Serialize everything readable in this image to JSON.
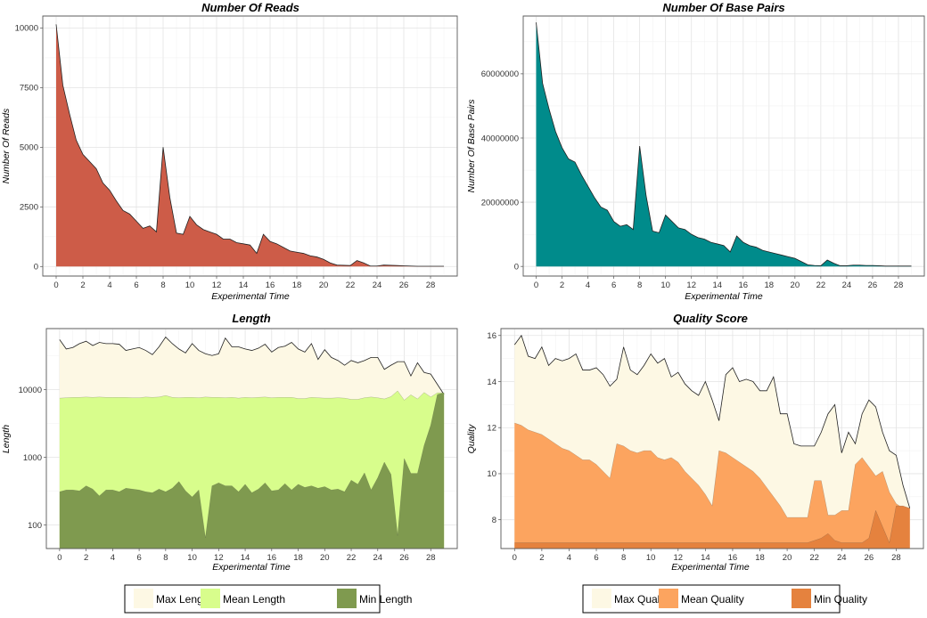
{
  "chart_data": [
    {
      "id": "reads",
      "type": "area",
      "title": "Number Of Reads",
      "xlabel": "Experimental Time",
      "ylabel": "Number Of Reads",
      "xlim": [
        -1,
        30
      ],
      "ylim": [
        -400,
        10500
      ],
      "xticks": [
        0,
        2,
        4,
        6,
        8,
        10,
        12,
        14,
        16,
        18,
        20,
        22,
        24,
        26,
        28
      ],
      "yticks": [
        0,
        2500,
        5000,
        7500,
        10000
      ],
      "grid": true,
      "fill": "#cd5c48",
      "x": [
        0,
        0.5,
        1,
        1.5,
        2,
        2.5,
        3,
        3.5,
        4,
        4.5,
        5,
        5.5,
        6,
        6.5,
        7,
        7.5,
        8,
        8.5,
        9,
        9.5,
        10,
        10.5,
        11,
        11.5,
        12,
        12.5,
        13,
        13.5,
        14,
        14.5,
        15,
        15.5,
        16,
        16.5,
        17,
        17.5,
        18,
        18.5,
        19,
        19.5,
        20,
        20.5,
        21,
        21.5,
        22,
        22.5,
        23,
        23.5,
        24,
        24.5,
        25,
        25.5,
        26,
        26.5,
        27,
        27.5,
        28,
        28.5,
        29
      ],
      "values": [
        10150,
        7600,
        6400,
        5300,
        4700,
        4400,
        4100,
        3500,
        3200,
        2750,
        2350,
        2200,
        1900,
        1600,
        1700,
        1450,
        5000,
        2900,
        1400,
        1350,
        2100,
        1750,
        1550,
        1450,
        1350,
        1150,
        1150,
        1000,
        950,
        900,
        550,
        1350,
        1050,
        950,
        800,
        650,
        600,
        550,
        450,
        400,
        300,
        150,
        60,
        50,
        40,
        250,
        150,
        20,
        20,
        60,
        50,
        40,
        30,
        20,
        10,
        10,
        10,
        10,
        10
      ]
    },
    {
      "id": "bases",
      "type": "area",
      "title": "Number Of Base Pairs",
      "xlabel": "Experimental Time",
      "ylabel": "Number Of Base Pairs",
      "xlim": [
        -1,
        30
      ],
      "ylim": [
        -3000000,
        78000000
      ],
      "xticks": [
        0,
        2,
        4,
        6,
        8,
        10,
        12,
        14,
        16,
        18,
        20,
        22,
        24,
        26,
        28
      ],
      "yticks": [
        0,
        20000000,
        40000000,
        60000000
      ],
      "grid": true,
      "fill": "#008b8b",
      "x": [
        0,
        0.5,
        1,
        1.5,
        2,
        2.5,
        3,
        3.5,
        4,
        4.5,
        5,
        5.5,
        6,
        6.5,
        7,
        7.5,
        8,
        8.5,
        9,
        9.5,
        10,
        10.5,
        11,
        11.5,
        12,
        12.5,
        13,
        13.5,
        14,
        14.5,
        15,
        15.5,
        16,
        16.5,
        17,
        17.5,
        18,
        18.5,
        19,
        19.5,
        20,
        20.5,
        21,
        21.5,
        22,
        22.5,
        23,
        23.5,
        24,
        24.5,
        25,
        25.5,
        26,
        26.5,
        27,
        27.5,
        28,
        28.5,
        29
      ],
      "values": [
        76000000,
        57000000,
        49000000,
        42000000,
        37000000,
        33500000,
        32500000,
        28500000,
        25000000,
        21500000,
        18500000,
        17500000,
        14000000,
        12500000,
        13000000,
        11500000,
        37500000,
        22000000,
        11000000,
        10500000,
        16000000,
        14000000,
        12000000,
        11500000,
        10000000,
        9000000,
        8500000,
        7500000,
        7000000,
        6500000,
        4500000,
        9500000,
        7500000,
        6500000,
        6000000,
        5000000,
        4500000,
        4000000,
        3500000,
        3000000,
        2500000,
        1500000,
        500000,
        300000,
        200000,
        2000000,
        1000000,
        200000,
        200000,
        400000,
        400000,
        300000,
        300000,
        200000,
        100000,
        100000,
        100000,
        100000,
        100000
      ]
    },
    {
      "id": "length",
      "type": "area",
      "title": "Length",
      "xlabel": "Experimental Time",
      "ylabel": "Length",
      "xlim": [
        -1,
        30
      ],
      "ylim": [
        45,
        80000
      ],
      "yscale": "log",
      "xticks": [
        0,
        2,
        4,
        6,
        8,
        10,
        12,
        14,
        16,
        18,
        20,
        22,
        24,
        26,
        28
      ],
      "yticks": [
        100,
        1000,
        10000
      ],
      "grid": true,
      "legend": "bottom",
      "series": [
        {
          "name": "Max Length",
          "color": "#fdf8e4",
          "x": [
            0,
            0.5,
            1,
            1.5,
            2,
            2.5,
            3,
            3.5,
            4,
            4.5,
            5,
            5.5,
            6,
            6.5,
            7,
            7.5,
            8,
            8.5,
            9,
            9.5,
            10,
            10.5,
            11,
            11.5,
            12,
            12.5,
            13,
            13.5,
            14,
            14.5,
            15,
            15.5,
            16,
            16.5,
            17,
            17.5,
            18,
            18.5,
            19,
            19.5,
            20,
            20.5,
            21,
            21.5,
            22,
            22.5,
            23,
            23.5,
            24,
            24.5,
            25,
            25.5,
            26,
            26.5,
            27,
            27.5,
            28,
            28.5,
            29
          ],
          "values": [
            55000,
            40000,
            42000,
            48000,
            52000,
            45000,
            50000,
            48000,
            48000,
            47000,
            38000,
            40000,
            42000,
            38000,
            33000,
            43000,
            60000,
            48000,
            40000,
            35000,
            48000,
            38000,
            34000,
            32000,
            34000,
            58000,
            43000,
            43000,
            40000,
            38000,
            41000,
            47000,
            36000,
            42000,
            44000,
            50000,
            40000,
            36000,
            48000,
            28000,
            39000,
            30000,
            27000,
            23000,
            27000,
            25000,
            27000,
            30000,
            30000,
            20000,
            23000,
            26000,
            26000,
            16000,
            25000,
            18000,
            17000,
            12000,
            8500
          ]
        },
        {
          "name": "Mean Length",
          "color": "#d8fd8c",
          "x": [
            0,
            0.5,
            1,
            1.5,
            2,
            2.5,
            3,
            3.5,
            4,
            4.5,
            5,
            5.5,
            6,
            6.5,
            7,
            7.5,
            8,
            8.5,
            9,
            9.5,
            10,
            10.5,
            11,
            11.5,
            12,
            12.5,
            13,
            13.5,
            14,
            14.5,
            15,
            15.5,
            16,
            16.5,
            17,
            17.5,
            18,
            18.5,
            19,
            19.5,
            20,
            20.5,
            21,
            21.5,
            22,
            22.5,
            23,
            23.5,
            24,
            24.5,
            25,
            25.5,
            26,
            26.5,
            27,
            27.5,
            28,
            28.5,
            29
          ],
          "values": [
            7500,
            7600,
            7700,
            7700,
            7800,
            7700,
            7800,
            7700,
            7700,
            7700,
            7700,
            7600,
            7600,
            7800,
            7700,
            7800,
            8200,
            7700,
            7600,
            7700,
            7700,
            7600,
            7800,
            7700,
            7700,
            7600,
            7700,
            7500,
            7700,
            7600,
            7700,
            7800,
            7600,
            7700,
            7700,
            7700,
            7400,
            7400,
            7700,
            7600,
            7500,
            7500,
            7600,
            7500,
            7200,
            7200,
            7600,
            7800,
            7600,
            7300,
            7900,
            9600,
            7000,
            8400,
            7300,
            9100,
            7800,
            9000,
            9000
          ]
        },
        {
          "name": "Min Length",
          "color": "#7f9a4f",
          "x": [
            0,
            0.5,
            1,
            1.5,
            2,
            2.5,
            3,
            3.5,
            4,
            4.5,
            5,
            5.5,
            6,
            6.5,
            7,
            7.5,
            8,
            8.5,
            9,
            9.5,
            10,
            10.5,
            11,
            11.5,
            12,
            12.5,
            13,
            13.5,
            14,
            14.5,
            15,
            15.5,
            16,
            16.5,
            17,
            17.5,
            18,
            18.5,
            19,
            19.5,
            20,
            20.5,
            21,
            21.5,
            22,
            22.5,
            23,
            23.5,
            24,
            24.5,
            25,
            25.5,
            26,
            26.5,
            27,
            27.5,
            28,
            28.5,
            29
          ],
          "values": [
            310,
            330,
            330,
            320,
            380,
            340,
            270,
            330,
            330,
            310,
            350,
            340,
            330,
            310,
            300,
            340,
            310,
            350,
            440,
            320,
            260,
            330,
            65,
            380,
            420,
            380,
            380,
            310,
            400,
            300,
            340,
            420,
            320,
            330,
            410,
            330,
            400,
            360,
            380,
            350,
            370,
            330,
            340,
            310,
            460,
            400,
            590,
            330,
            500,
            850,
            560,
            70,
            960,
            580,
            580,
            1500,
            3000,
            8500,
            9000
          ]
        }
      ]
    },
    {
      "id": "quality",
      "type": "area",
      "title": "Quality Score",
      "xlabel": "Experimental Time",
      "ylabel": "Quality",
      "xlim": [
        -1,
        30
      ],
      "ylim": [
        6.75,
        16.3
      ],
      "xticks": [
        0,
        2,
        4,
        6,
        8,
        10,
        12,
        14,
        16,
        18,
        20,
        22,
        24,
        26,
        28
      ],
      "yticks": [
        8,
        10,
        12,
        14,
        16
      ],
      "grid": true,
      "legend": "bottom",
      "series": [
        {
          "name": "Max Quality",
          "color": "#fdf8e4",
          "x": [
            0,
            0.5,
            1,
            1.5,
            2,
            2.5,
            3,
            3.5,
            4,
            4.5,
            5,
            5.5,
            6,
            6.5,
            7,
            7.5,
            8,
            8.5,
            9,
            9.5,
            10,
            10.5,
            11,
            11.5,
            12,
            12.5,
            13,
            13.5,
            14,
            14.5,
            15,
            15.5,
            16,
            16.5,
            17,
            17.5,
            18,
            18.5,
            19,
            19.5,
            20,
            20.5,
            21,
            21.5,
            22,
            22.5,
            23,
            23.5,
            24,
            24.5,
            25,
            25.5,
            26,
            26.5,
            27,
            27.5,
            28,
            28.5,
            29
          ],
          "values": [
            15.6,
            16.0,
            15.1,
            15.0,
            15.5,
            14.7,
            15.0,
            14.9,
            15.0,
            15.2,
            14.5,
            14.5,
            14.6,
            14.3,
            13.8,
            14.1,
            15.5,
            14.5,
            14.3,
            14.7,
            15.2,
            14.8,
            15.0,
            14.2,
            14.4,
            13.9,
            13.6,
            13.4,
            14.0,
            13.2,
            12.3,
            14.3,
            14.6,
            14.0,
            14.1,
            14.0,
            13.6,
            13.6,
            14.2,
            12.6,
            12.6,
            11.3,
            11.2,
            11.2,
            11.2,
            11.8,
            12.6,
            13.0,
            10.9,
            11.8,
            11.3,
            12.6,
            13.2,
            12.9,
            11.8,
            11.0,
            10.8,
            9.5,
            8.5
          ]
        },
        {
          "name": "Mean Quality",
          "color": "#fca45f",
          "x": [
            0,
            0.5,
            1,
            1.5,
            2,
            2.5,
            3,
            3.5,
            4,
            4.5,
            5,
            5.5,
            6,
            6.5,
            7,
            7.5,
            8,
            8.5,
            9,
            9.5,
            10,
            10.5,
            11,
            11.5,
            12,
            12.5,
            13,
            13.5,
            14,
            14.5,
            15,
            15.5,
            16,
            16.5,
            17,
            17.5,
            18,
            18.5,
            19,
            19.5,
            20,
            20.5,
            21,
            21.5,
            22,
            22.5,
            23,
            23.5,
            24,
            24.5,
            25,
            25.5,
            26,
            26.5,
            27,
            27.5,
            28,
            28.5,
            29
          ],
          "values": [
            12.2,
            12.1,
            11.9,
            11.8,
            11.7,
            11.5,
            11.3,
            11.1,
            11.0,
            10.8,
            10.6,
            10.6,
            10.4,
            10.1,
            9.8,
            11.3,
            11.2,
            11.0,
            10.9,
            11.0,
            11.0,
            10.7,
            10.6,
            10.7,
            10.5,
            10.1,
            9.8,
            9.5,
            9.1,
            8.6,
            11.0,
            10.9,
            10.7,
            10.5,
            10.3,
            10.1,
            9.8,
            9.4,
            9.0,
            8.6,
            8.1,
            8.1,
            8.1,
            8.1,
            9.7,
            9.7,
            8.2,
            8.2,
            8.4,
            8.4,
            10.4,
            10.7,
            10.3,
            9.9,
            10.1,
            9.2,
            8.7,
            8.5,
            8.5
          ]
        },
        {
          "name": "Min Quality",
          "color": "#e5823e",
          "x": [
            0,
            0.5,
            1,
            1.5,
            2,
            2.5,
            3,
            3.5,
            4,
            4.5,
            5,
            5.5,
            6,
            6.5,
            7,
            7.5,
            8,
            8.5,
            9,
            9.5,
            10,
            10.5,
            11,
            11.5,
            12,
            12.5,
            13,
            13.5,
            14,
            14.5,
            15,
            15.5,
            16,
            16.5,
            17,
            17.5,
            18,
            18.5,
            19,
            19.5,
            20,
            20.5,
            21,
            21.5,
            22,
            22.5,
            23,
            23.5,
            24,
            24.5,
            25,
            25.5,
            26,
            26.5,
            27,
            27.5,
            28,
            28.5,
            29
          ],
          "values": [
            7.0,
            7.0,
            7.0,
            7.0,
            7.0,
            7.0,
            7.0,
            7.0,
            7.0,
            7.0,
            7.0,
            7.0,
            7.0,
            7.0,
            7.0,
            7.0,
            7.0,
            7.0,
            7.0,
            7.0,
            7.0,
            7.0,
            7.0,
            7.0,
            7.0,
            7.0,
            7.0,
            7.0,
            7.0,
            7.0,
            7.0,
            7.0,
            7.0,
            7.0,
            7.0,
            7.0,
            7.0,
            7.0,
            7.0,
            7.0,
            7.0,
            7.0,
            7.0,
            7.0,
            7.1,
            7.2,
            7.4,
            7.1,
            7.0,
            7.0,
            7.0,
            7.0,
            7.2,
            8.4,
            7.7,
            7.0,
            8.6,
            8.6,
            8.5
          ]
        }
      ]
    }
  ]
}
